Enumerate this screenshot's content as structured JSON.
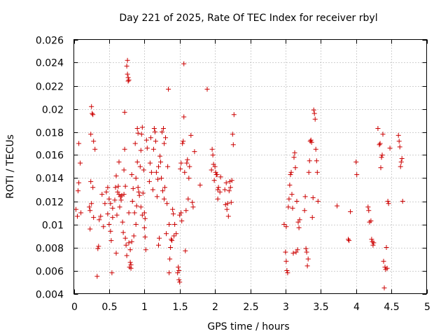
{
  "chart_data": {
    "type": "scatter",
    "title": "Day 221 of 2025, Rate Of TEC Index for receiver rbyl",
    "xlabel": "GPS time / hours",
    "ylabel": "ROTI / TECUs",
    "xlim": [
      0,
      5
    ],
    "ylim": [
      0.004,
      0.026
    ],
    "x_ticks": [
      "0",
      "0.5",
      "1",
      "1.5",
      "2",
      "2.5",
      "3",
      "3.5",
      "4",
      "4.5",
      "5"
    ],
    "y_ticks": [
      "0.004",
      "0.006",
      "0.008",
      "0.01",
      "0.012",
      "0.014",
      "0.016",
      "0.018",
      "0.02",
      "0.022",
      "0.024",
      "0.026"
    ],
    "grid": true,
    "marker": "+",
    "color": "#cc0000",
    "points": [
      [
        0.03,
        0.0113
      ],
      [
        0.05,
        0.0107
      ],
      [
        0.06,
        0.0129
      ],
      [
        0.07,
        0.0136
      ],
      [
        0.07,
        0.017
      ],
      [
        0.09,
        0.0153
      ],
      [
        0.1,
        0.011
      ],
      [
        0.22,
        0.0115
      ],
      [
        0.23,
        0.0096
      ],
      [
        0.23,
        0.0112
      ],
      [
        0.24,
        0.0178
      ],
      [
        0.24,
        0.0137
      ],
      [
        0.25,
        0.0118
      ],
      [
        0.25,
        0.0202
      ],
      [
        0.26,
        0.0196
      ],
      [
        0.27,
        0.0132
      ],
      [
        0.27,
        0.0195
      ],
      [
        0.28,
        0.0172
      ],
      [
        0.28,
        0.0106
      ],
      [
        0.3,
        0.0165
      ],
      [
        0.33,
        0.0055
      ],
      [
        0.34,
        0.0079
      ],
      [
        0.35,
        0.0081
      ],
      [
        0.36,
        0.0104
      ],
      [
        0.38,
        0.0107
      ],
      [
        0.4,
        0.0126
      ],
      [
        0.42,
        0.0098
      ],
      [
        0.44,
        0.0118
      ],
      [
        0.46,
        0.0128
      ],
      [
        0.48,
        0.0132
      ],
      [
        0.48,
        0.0109
      ],
      [
        0.5,
        0.01
      ],
      [
        0.5,
        0.0122
      ],
      [
        0.52,
        0.0094
      ],
      [
        0.52,
        0.0118
      ],
      [
        0.53,
        0.0086
      ],
      [
        0.54,
        0.0058
      ],
      [
        0.55,
        0.0106
      ],
      [
        0.55,
        0.0114
      ],
      [
        0.58,
        0.0121
      ],
      [
        0.59,
        0.0132
      ],
      [
        0.6,
        0.0142
      ],
      [
        0.6,
        0.0075
      ],
      [
        0.61,
        0.0108
      ],
      [
        0.62,
        0.0128
      ],
      [
        0.63,
        0.0133
      ],
      [
        0.64,
        0.0154
      ],
      [
        0.64,
        0.0126
      ],
      [
        0.65,
        0.0115
      ],
      [
        0.66,
        0.0124
      ],
      [
        0.67,
        0.0121
      ],
      [
        0.68,
        0.0125
      ],
      [
        0.69,
        0.0102
      ],
      [
        0.7,
        0.0093
      ],
      [
        0.71,
        0.0147
      ],
      [
        0.71,
        0.0126
      ],
      [
        0.72,
        0.0165
      ],
      [
        0.72,
        0.0197
      ],
      [
        0.73,
        0.0133
      ],
      [
        0.73,
        0.0088
      ],
      [
        0.74,
        0.0082
      ],
      [
        0.75,
        0.0073
      ],
      [
        0.75,
        0.0237
      ],
      [
        0.76,
        0.0242
      ],
      [
        0.76,
        0.023
      ],
      [
        0.77,
        0.0227
      ],
      [
        0.77,
        0.0224
      ],
      [
        0.78,
        0.0225
      ],
      [
        0.78,
        0.0084
      ],
      [
        0.78,
        0.011
      ],
      [
        0.79,
        0.0063
      ],
      [
        0.8,
        0.0067
      ],
      [
        0.8,
        0.0078
      ],
      [
        0.81,
        0.0065
      ],
      [
        0.81,
        0.0062
      ],
      [
        0.82,
        0.0085
      ],
      [
        0.82,
        0.0143
      ],
      [
        0.83,
        0.012
      ],
      [
        0.84,
        0.0131
      ],
      [
        0.85,
        0.009
      ],
      [
        0.86,
        0.011
      ],
      [
        0.87,
        0.017
      ],
      [
        0.88,
        0.01
      ],
      [
        0.88,
        0.014
      ],
      [
        0.89,
        0.0116
      ],
      [
        0.9,
        0.0183
      ],
      [
        0.9,
        0.0154
      ],
      [
        0.91,
        0.0132
      ],
      [
        0.91,
        0.0179
      ],
      [
        0.92,
        0.0128
      ],
      [
        0.93,
        0.0125
      ],
      [
        0.94,
        0.015
      ],
      [
        0.95,
        0.0115
      ],
      [
        0.95,
        0.0164
      ],
      [
        0.96,
        0.0178
      ],
      [
        0.97,
        0.0108
      ],
      [
        0.97,
        0.0184
      ],
      [
        0.98,
        0.0127
      ],
      [
        0.99,
        0.0147
      ],
      [
        1.0,
        0.011
      ],
      [
        1.0,
        0.0097
      ],
      [
        1.01,
        0.0105
      ],
      [
        1.01,
        0.0089
      ],
      [
        1.02,
        0.0078
      ],
      [
        1.03,
        0.0173
      ],
      [
        1.04,
        0.0166
      ],
      [
        1.07,
        0.0137
      ],
      [
        1.08,
        0.0153
      ],
      [
        1.09,
        0.0175
      ],
      [
        1.1,
        0.0145
      ],
      [
        1.12,
        0.013
      ],
      [
        1.13,
        0.0165
      ],
      [
        1.14,
        0.0183
      ],
      [
        1.15,
        0.018
      ],
      [
        1.16,
        0.0172
      ],
      [
        1.17,
        0.0145
      ],
      [
        1.18,
        0.0124
      ],
      [
        1.19,
        0.0139
      ],
      [
        1.2,
        0.015
      ],
      [
        1.2,
        0.0082
      ],
      [
        1.21,
        0.0088
      ],
      [
        1.22,
        0.0159
      ],
      [
        1.23,
        0.0154
      ],
      [
        1.24,
        0.014
      ],
      [
        1.25,
        0.018
      ],
      [
        1.26,
        0.0129
      ],
      [
        1.27,
        0.0183
      ],
      [
        1.28,
        0.0122
      ],
      [
        1.28,
        0.017
      ],
      [
        1.29,
        0.0132
      ],
      [
        1.3,
        0.0175
      ],
      [
        1.31,
        0.0092
      ],
      [
        1.32,
        0.0118
      ],
      [
        1.33,
        0.015
      ],
      [
        1.34,
        0.0217
      ],
      [
        1.35,
        0.01
      ],
      [
        1.35,
        0.0058
      ],
      [
        1.36,
        0.007
      ],
      [
        1.37,
        0.008
      ],
      [
        1.38,
        0.0087
      ],
      [
        1.39,
        0.0086
      ],
      [
        1.4,
        0.0113
      ],
      [
        1.41,
        0.0109
      ],
      [
        1.42,
        0.009
      ],
      [
        1.43,
        0.01
      ],
      [
        1.45,
        0.0092
      ],
      [
        1.47,
        0.0058
      ],
      [
        1.48,
        0.0063
      ],
      [
        1.49,
        0.006
      ],
      [
        1.49,
        0.0052
      ],
      [
        1.5,
        0.005
      ],
      [
        1.5,
        0.0108
      ],
      [
        1.51,
        0.0148
      ],
      [
        1.52,
        0.0153
      ],
      [
        1.52,
        0.011
      ],
      [
        1.53,
        0.0103
      ],
      [
        1.54,
        0.017
      ],
      [
        1.55,
        0.0172
      ],
      [
        1.56,
        0.0239
      ],
      [
        1.56,
        0.0193
      ],
      [
        1.57,
        0.0145
      ],
      [
        1.58,
        0.0077
      ],
      [
        1.59,
        0.0112
      ],
      [
        1.6,
        0.0153
      ],
      [
        1.61,
        0.0156
      ],
      [
        1.62,
        0.0122
      ],
      [
        1.63,
        0.014
      ],
      [
        1.64,
        0.015
      ],
      [
        1.66,
        0.0177
      ],
      [
        1.68,
        0.0119
      ],
      [
        1.69,
        0.0115
      ],
      [
        1.71,
        0.0163
      ],
      [
        1.79,
        0.0134
      ],
      [
        1.89,
        0.0217
      ],
      [
        1.95,
        0.0147
      ],
      [
        1.96,
        0.0165
      ],
      [
        1.97,
        0.016
      ],
      [
        1.98,
        0.0152
      ],
      [
        1.99,
        0.0138
      ],
      [
        2.0,
        0.015
      ],
      [
        2.01,
        0.0145
      ],
      [
        2.02,
        0.0143
      ],
      [
        2.03,
        0.0143
      ],
      [
        2.04,
        0.013
      ],
      [
        2.04,
        0.0122
      ],
      [
        2.05,
        0.0132
      ],
      [
        2.07,
        0.0128
      ],
      [
        2.08,
        0.0141
      ],
      [
        2.14,
        0.013
      ],
      [
        2.15,
        0.0117
      ],
      [
        2.16,
        0.0136
      ],
      [
        2.17,
        0.0113
      ],
      [
        2.18,
        0.0118
      ],
      [
        2.19,
        0.0107
      ],
      [
        2.2,
        0.0129
      ],
      [
        2.21,
        0.0137
      ],
      [
        2.22,
        0.0132
      ],
      [
        2.23,
        0.0119
      ],
      [
        2.24,
        0.0138
      ],
      [
        2.25,
        0.0178
      ],
      [
        2.26,
        0.0169
      ],
      [
        2.27,
        0.0195
      ],
      [
        2.98,
        0.01
      ],
      [
        3.0,
        0.0076
      ],
      [
        3.01,
        0.0098
      ],
      [
        3.01,
        0.0068
      ],
      [
        3.02,
        0.006
      ],
      [
        3.03,
        0.0058
      ],
      [
        3.04,
        0.0115
      ],
      [
        3.05,
        0.0122
      ],
      [
        3.06,
        0.0134
      ],
      [
        3.07,
        0.0143
      ],
      [
        3.08,
        0.0145
      ],
      [
        3.09,
        0.0126
      ],
      [
        3.1,
        0.0114
      ],
      [
        3.11,
        0.0075
      ],
      [
        3.12,
        0.0158
      ],
      [
        3.13,
        0.0162
      ],
      [
        3.14,
        0.0149
      ],
      [
        3.15,
        0.0076
      ],
      [
        3.16,
        0.012
      ],
      [
        3.17,
        0.0078
      ],
      [
        3.18,
        0.0102
      ],
      [
        3.19,
        0.0097
      ],
      [
        3.2,
        0.0104
      ],
      [
        3.27,
        0.0112
      ],
      [
        3.28,
        0.0124
      ],
      [
        3.29,
        0.0079
      ],
      [
        3.3,
        0.0076
      ],
      [
        3.31,
        0.0064
      ],
      [
        3.32,
        0.007
      ],
      [
        3.33,
        0.0145
      ],
      [
        3.34,
        0.0155
      ],
      [
        3.35,
        0.0172
      ],
      [
        3.36,
        0.0173
      ],
      [
        3.37,
        0.0171
      ],
      [
        3.38,
        0.0106
      ],
      [
        3.39,
        0.0123
      ],
      [
        3.4,
        0.0199
      ],
      [
        3.41,
        0.0196
      ],
      [
        3.42,
        0.0191
      ],
      [
        3.43,
        0.0165
      ],
      [
        3.44,
        0.0155
      ],
      [
        3.45,
        0.0145
      ],
      [
        3.46,
        0.012
      ],
      [
        3.73,
        0.0116
      ],
      [
        3.89,
        0.0087
      ],
      [
        3.9,
        0.0086
      ],
      [
        3.92,
        0.0111
      ],
      [
        4.0,
        0.0154
      ],
      [
        4.01,
        0.0143
      ],
      [
        4.17,
        0.0115
      ],
      [
        4.18,
        0.0112
      ],
      [
        4.19,
        0.0102
      ],
      [
        4.21,
        0.0103
      ],
      [
        4.22,
        0.0087
      ],
      [
        4.23,
        0.0085
      ],
      [
        4.24,
        0.0082
      ],
      [
        4.25,
        0.0084
      ],
      [
        4.31,
        0.0183
      ],
      [
        4.33,
        0.0169
      ],
      [
        4.34,
        0.017
      ],
      [
        4.35,
        0.0149
      ],
      [
        4.36,
        0.0158
      ],
      [
        4.37,
        0.016
      ],
      [
        4.38,
        0.0178
      ],
      [
        4.39,
        0.0068
      ],
      [
        4.4,
        0.0045
      ],
      [
        4.41,
        0.0063
      ],
      [
        4.42,
        0.0061
      ],
      [
        4.43,
        0.008
      ],
      [
        4.44,
        0.0062
      ],
      [
        4.45,
        0.012
      ],
      [
        4.46,
        0.0118
      ],
      [
        4.48,
        0.0166
      ],
      [
        4.6,
        0.0177
      ],
      [
        4.61,
        0.0172
      ],
      [
        4.62,
        0.0167
      ],
      [
        4.63,
        0.015
      ],
      [
        4.64,
        0.0154
      ],
      [
        4.65,
        0.0157
      ],
      [
        4.66,
        0.012
      ]
    ]
  }
}
